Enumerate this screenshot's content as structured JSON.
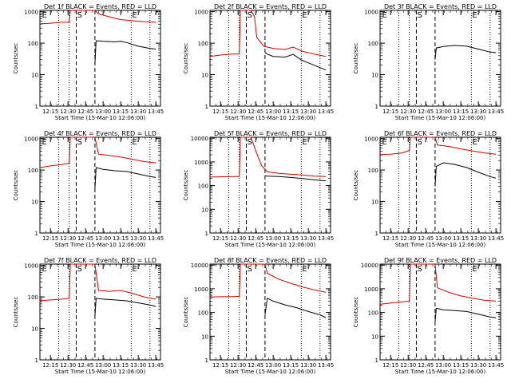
{
  "chart_data": [
    {
      "type": "line",
      "title": "Det 1f BLACK = Events, RED = LLD",
      "xlabel": "Start Time (15-Mar-10 12:06:00)",
      "ylabel": "Counts/sec",
      "xticks": [
        "12:15",
        "12:30",
        "12:45",
        "13:00",
        "13:15",
        "13:30",
        "13:45"
      ],
      "yticks": [
        "1",
        "10",
        "100",
        "1000"
      ],
      "yscale": "log",
      "ylim": [
        1,
        1100
      ],
      "xlim": [
        "12:06",
        "13:49"
      ],
      "markers": [
        {
          "label": "E",
          "time": "12:07"
        },
        {
          "label": "S",
          "time": "12:37"
        },
        {
          "label": "E",
          "time": "13:24"
        }
      ],
      "vlines_dotted": [
        "12:22",
        "12:31",
        "13:24",
        "13:40"
      ],
      "vlines_dashed": [
        "12:37",
        "12:53"
      ],
      "series": [
        {
          "color": "#d40000",
          "x": [
            "12:06",
            "12:15",
            "12:25",
            "12:31",
            "12:32",
            "12:36",
            "12:37",
            "12:53",
            "12:56",
            "13:05",
            "13:15",
            "13:24",
            "13:35",
            "13:45"
          ],
          "y": [
            410,
            430,
            460,
            460,
            1100,
            1100,
            1100,
            1100,
            850,
            690,
            560,
            520,
            480,
            460
          ]
        },
        {
          "color": "#000000",
          "x": [
            "12:53",
            "12:54",
            "13:00",
            "13:10",
            "13:15",
            "13:20",
            "13:30",
            "13:40",
            "13:45"
          ],
          "y": [
            22,
            120,
            115,
            110,
            115,
            105,
            80,
            68,
            65
          ]
        }
      ]
    },
    {
      "type": "line",
      "title": "Det 2f BLACK = Events, RED = LLD",
      "xlabel": "Start Time (15-Mar-10 12:06:00)",
      "ylabel": "Counts/sec",
      "xticks": [
        "12:15",
        "12:30",
        "12:45",
        "13:00",
        "13:15",
        "13:30",
        "13:45"
      ],
      "yticks": [
        "1",
        "10",
        "100",
        "1000"
      ],
      "yscale": "log",
      "ylim": [
        1,
        1100
      ],
      "xlim": [
        "12:06",
        "13:49"
      ],
      "markers": [
        {
          "label": "S",
          "time": "12:37"
        },
        {
          "label": "E",
          "time": "13:24"
        }
      ],
      "vlines_dotted": [
        "12:22",
        "12:31",
        "13:24",
        "13:40"
      ],
      "vlines_dashed": [
        "12:37",
        "12:53"
      ],
      "series": [
        {
          "color": "#d40000",
          "x": [
            "12:06",
            "12:15",
            "12:25",
            "12:31",
            "12:32",
            "12:41",
            "12:44",
            "12:46",
            "12:52",
            "13:00",
            "13:10",
            "13:17",
            "13:25",
            "13:35",
            "13:45"
          ],
          "y": [
            38,
            42,
            45,
            45,
            1100,
            1100,
            700,
            150,
            80,
            68,
            63,
            75,
            55,
            45,
            38
          ]
        },
        {
          "color": "#000000",
          "x": [
            "12:53",
            "12:55",
            "13:00",
            "13:10",
            "13:17",
            "13:25",
            "13:35",
            "13:45"
          ],
          "y": [
            50,
            45,
            38,
            36,
            44,
            28,
            20,
            14
          ]
        }
      ]
    },
    {
      "type": "line",
      "title": "Det 3f BLACK = Events, RED = LLD",
      "xlabel": "Start Time (15-Mar-10 12:06:00)",
      "ylabel": "Counts/sec",
      "xticks": [
        "12:15",
        "12:30",
        "12:45",
        "13:00",
        "13:15",
        "13:30",
        "13:45"
      ],
      "yticks": [
        "1",
        "10",
        "100",
        "1000"
      ],
      "yscale": "log",
      "ylim": [
        1,
        1100
      ],
      "xlim": [
        "12:06",
        "13:49"
      ],
      "markers": [
        {
          "label": "E",
          "time": "12:07"
        },
        {
          "label": "S",
          "time": "12:37"
        },
        {
          "label": "E",
          "time": "13:24"
        }
      ],
      "vlines_dotted": [
        "12:22",
        "12:31",
        "13:24",
        "13:40"
      ],
      "vlines_dashed": [
        "12:37",
        "12:53"
      ],
      "series": [
        {
          "color": "#000000",
          "x": [
            "12:53",
            "12:54",
            "13:00",
            "13:10",
            "13:20",
            "13:30",
            "13:40",
            "13:45"
          ],
          "y": [
            30,
            70,
            78,
            85,
            80,
            65,
            52,
            50
          ]
        }
      ]
    },
    {
      "type": "line",
      "title": "Det 4f BLACK = Events, RED = LLD",
      "xlabel": "Start Time (15-Mar-10 12:06:00)",
      "ylabel": "Counts/sec",
      "xticks": [
        "12:15",
        "12:30",
        "12:45",
        "13:00",
        "13:15",
        "13:30",
        "13:45"
      ],
      "yticks": [
        "1",
        "10",
        "100",
        "1000"
      ],
      "yscale": "log",
      "ylim": [
        1,
        1100
      ],
      "xlim": [
        "12:06",
        "13:49"
      ],
      "markers": [
        {
          "label": "E",
          "time": "12:07"
        },
        {
          "label": "S",
          "time": "12:37"
        },
        {
          "label": "E",
          "time": "13:24"
        }
      ],
      "vlines_dotted": [
        "12:22",
        "12:31",
        "13:24",
        "13:40"
      ],
      "vlines_dashed": [
        "12:37",
        "12:53"
      ],
      "series": [
        {
          "color": "#d40000",
          "x": [
            "12:06",
            "12:15",
            "12:25",
            "12:31",
            "12:32",
            "12:36",
            "12:37",
            "12:53",
            "12:56",
            "13:05",
            "13:15",
            "13:25",
            "13:35",
            "13:45"
          ],
          "y": [
            120,
            135,
            150,
            165,
            1100,
            1100,
            1100,
            1100,
            320,
            290,
            260,
            220,
            185,
            170
          ]
        },
        {
          "color": "#000000",
          "x": [
            "12:53",
            "12:54",
            "13:00",
            "13:10",
            "13:20",
            "13:30",
            "13:40",
            "13:45"
          ],
          "y": [
            25,
            120,
            105,
            95,
            90,
            75,
            62,
            58
          ]
        }
      ]
    },
    {
      "type": "line",
      "title": "Det 5f BLACK = Events, RED = LLD",
      "xlabel": "Start Time (15-Mar-10 12:06:00)",
      "ylabel": "Counts/sec",
      "xticks": [
        "12:15",
        "12:30",
        "12:45",
        "13:00",
        "13:15",
        "13:30",
        "13:45"
      ],
      "yticks": [
        "1",
        "10",
        "100",
        "1000",
        "10000"
      ],
      "yscale": "log",
      "ylim": [
        1,
        11000
      ],
      "xlim": [
        "12:06",
        "13:49"
      ],
      "markers": [
        {
          "label": "S",
          "time": "12:37"
        },
        {
          "label": "E",
          "time": "13:24"
        }
      ],
      "vlines_dotted": [
        "12:22",
        "12:31",
        "13:24",
        "13:40"
      ],
      "vlines_dashed": [
        "12:37",
        "12:53"
      ],
      "series": [
        {
          "color": "#d40000",
          "x": [
            "12:06",
            "12:15",
            "12:25",
            "12:31",
            "12:32",
            "12:41",
            "12:45",
            "12:50",
            "12:55",
            "13:05",
            "13:15",
            "13:25",
            "13:35",
            "13:45"
          ],
          "y": [
            230,
            235,
            240,
            240,
            11000,
            11000,
            3000,
            700,
            380,
            330,
            300,
            280,
            250,
            240
          ]
        },
        {
          "color": "#000000",
          "x": [
            "12:53",
            "12:55",
            "13:05",
            "13:15",
            "13:25",
            "13:35",
            "13:45"
          ],
          "y": [
            260,
            250,
            240,
            220,
            200,
            175,
            160
          ]
        }
      ]
    },
    {
      "type": "line",
      "title": "Det 6f BLACK = Events, RED = LLD",
      "xlabel": "Start Time (15-Mar-10 12:06:00)",
      "ylabel": "Counts/sec",
      "xticks": [
        "12:15",
        "12:30",
        "12:45",
        "13:00",
        "13:15",
        "13:30",
        "13:45"
      ],
      "yticks": [
        "1",
        "10",
        "100",
        "1000"
      ],
      "yscale": "log",
      "ylim": [
        1,
        1100
      ],
      "xlim": [
        "12:06",
        "13:49"
      ],
      "markers": [
        {
          "label": "E",
          "time": "12:07"
        },
        {
          "label": "S",
          "time": "12:37"
        },
        {
          "label": "E",
          "time": "13:24"
        }
      ],
      "vlines_dotted": [
        "12:22",
        "12:31",
        "13:24",
        "13:40"
      ],
      "vlines_dashed": [
        "12:37",
        "12:53"
      ],
      "series": [
        {
          "color": "#d40000",
          "x": [
            "12:06",
            "12:15",
            "12:25",
            "12:31",
            "12:32",
            "12:36",
            "12:37",
            "12:53",
            "12:55",
            "13:05",
            "13:15",
            "13:25",
            "13:35",
            "13:45"
          ],
          "y": [
            310,
            320,
            350,
            420,
            1100,
            1100,
            1100,
            1100,
            620,
            560,
            470,
            400,
            350,
            320
          ]
        },
        {
          "color": "#000000",
          "x": [
            "12:53",
            "12:54",
            "13:00",
            "13:10",
            "13:20",
            "13:30",
            "13:40",
            "13:45"
          ],
          "y": [
            30,
            130,
            170,
            150,
            120,
            85,
            62,
            55
          ]
        }
      ]
    },
    {
      "type": "line",
      "title": "Det 7f BLACK = Events, RED = LLD",
      "xlabel": "Start Time (15-Mar-10 12:06:00)",
      "ylabel": "Counts/sec",
      "xticks": [
        "12:15",
        "12:30",
        "12:45",
        "13:00",
        "13:15",
        "13:30",
        "13:45"
      ],
      "yticks": [
        "1",
        "10",
        "100",
        "1000"
      ],
      "yscale": "log",
      "ylim": [
        1,
        1100
      ],
      "xlim": [
        "12:06",
        "13:49"
      ],
      "markers": [
        {
          "label": "E",
          "time": "12:07"
        },
        {
          "label": "S",
          "time": "12:37"
        },
        {
          "label": "E",
          "time": "13:24"
        }
      ],
      "vlines_dotted": [
        "12:22",
        "12:31",
        "13:24",
        "13:40"
      ],
      "vlines_dashed": [
        "12:37",
        "12:53"
      ],
      "series": [
        {
          "color": "#d40000",
          "x": [
            "12:06",
            "12:15",
            "12:25",
            "12:31",
            "12:32",
            "12:36",
            "12:37",
            "12:53",
            "12:56",
            "13:05",
            "13:15",
            "13:25",
            "13:35",
            "13:45"
          ],
          "y": [
            75,
            80,
            85,
            90,
            1100,
            1100,
            1100,
            1100,
            160,
            150,
            160,
            130,
            100,
            85
          ]
        },
        {
          "color": "#000000",
          "x": [
            "12:53",
            "12:54",
            "13:00",
            "13:10",
            "13:20",
            "13:30",
            "13:40",
            "13:45"
          ],
          "y": [
            25,
            90,
            85,
            80,
            75,
            65,
            55,
            50
          ]
        }
      ]
    },
    {
      "type": "line",
      "title": "Det 8f BLACK = Events, RED = LLD",
      "xlabel": "Start Time (15-Mar-10 12:06:00)",
      "ylabel": "Counts/sec",
      "xticks": [
        "12:15",
        "12:30",
        "12:45",
        "13:00",
        "13:15",
        "13:30",
        "13:45"
      ],
      "yticks": [
        "1",
        "10",
        "100",
        "1000",
        "10000"
      ],
      "yscale": "log",
      "ylim": [
        1,
        11000
      ],
      "xlim": [
        "12:06",
        "13:49"
      ],
      "markers": [
        {
          "label": "S",
          "time": "12:37"
        },
        {
          "label": "E",
          "time": "13:24"
        }
      ],
      "vlines_dotted": [
        "12:22",
        "12:31",
        "13:24",
        "13:40"
      ],
      "vlines_dashed": [
        "12:37",
        "12:53"
      ],
      "series": [
        {
          "color": "#d40000",
          "x": [
            "12:06",
            "12:15",
            "12:25",
            "12:31",
            "12:32",
            "12:41",
            "12:45",
            "12:53",
            "12:55",
            "13:05",
            "13:15",
            "13:25",
            "13:35",
            "13:45"
          ],
          "y": [
            450,
            460,
            470,
            480,
            11000,
            11000,
            11000,
            11000,
            4500,
            2500,
            1700,
            1200,
            900,
            720
          ]
        },
        {
          "color": "#000000",
          "x": [
            "12:53",
            "12:55",
            "13:00",
            "13:10",
            "13:20",
            "13:30",
            "13:40",
            "13:45"
          ],
          "y": [
            80,
            400,
            300,
            210,
            160,
            110,
            80,
            60
          ]
        }
      ]
    },
    {
      "type": "line",
      "title": "Det 9f BLACK = Events, RED = LLD",
      "xlabel": "Start Time (15-Mar-10 12:06:00)",
      "ylabel": "Counts/sec",
      "xticks": [
        "12:15",
        "12:30",
        "12:45",
        "13:00",
        "13:15",
        "13:30",
        "13:45"
      ],
      "yticks": [
        "1",
        "10",
        "100",
        "1000",
        "10000"
      ],
      "yscale": "log",
      "ylim": [
        1,
        11000
      ],
      "xlim": [
        "12:06",
        "13:49"
      ],
      "markers": [
        {
          "label": "S",
          "time": "12:37"
        },
        {
          "label": "E",
          "time": "13:24"
        }
      ],
      "vlines_dotted": [
        "12:22",
        "12:31",
        "13:24",
        "13:40"
      ],
      "vlines_dashed": [
        "12:37",
        "12:53"
      ],
      "series": [
        {
          "color": "#d40000",
          "x": [
            "12:06",
            "12:15",
            "12:25",
            "12:31",
            "12:32",
            "12:36",
            "12:37",
            "12:53",
            "12:55",
            "13:05",
            "13:15",
            "13:25",
            "13:35",
            "13:45"
          ],
          "y": [
            220,
            250,
            280,
            300,
            11000,
            11000,
            11000,
            11000,
            1100,
            700,
            500,
            400,
            330,
            300
          ]
        },
        {
          "color": "#000000",
          "x": [
            "12:53",
            "12:54",
            "13:00",
            "13:10",
            "13:20",
            "13:30",
            "13:40",
            "13:45"
          ],
          "y": [
            40,
            150,
            130,
            120,
            110,
            85,
            65,
            60
          ]
        }
      ]
    }
  ]
}
